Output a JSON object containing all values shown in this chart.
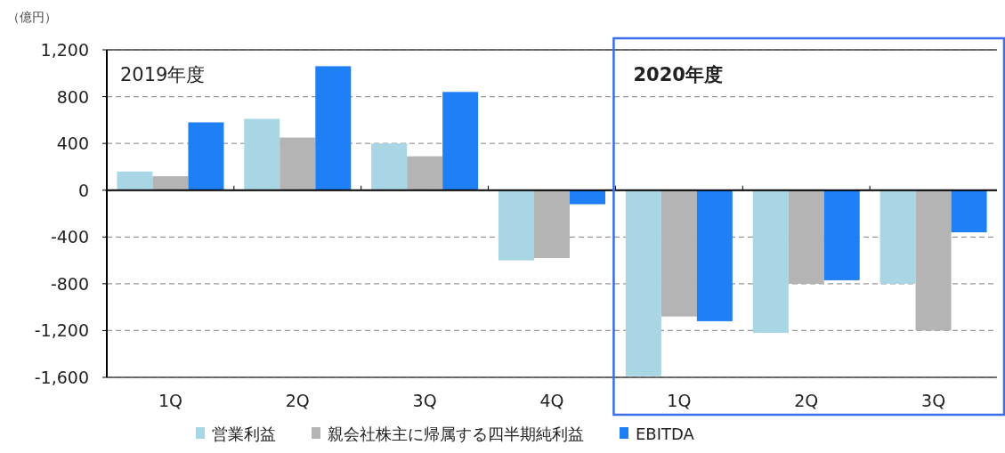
{
  "chart_data": {
    "type": "bar",
    "ylabel": "（億円）",
    "categories": [
      "1Q",
      "2Q",
      "3Q",
      "4Q",
      "1Q",
      "2Q",
      "3Q"
    ],
    "series": [
      {
        "name": "営業利益",
        "color": "#a9d6e5",
        "values": [
          160,
          610,
          400,
          -600,
          -1590,
          -1220,
          -800
        ]
      },
      {
        "name": "親会社株主に帰属する四半期純利益",
        "color": "#b4b4b4",
        "values": [
          120,
          450,
          290,
          -580,
          -1080,
          -800,
          -1200
        ]
      },
      {
        "name": "EBITDA",
        "color": "#1f80f5",
        "values": [
          580,
          1060,
          840,
          -120,
          -1120,
          -770,
          -360
        ]
      }
    ],
    "ylim": [
      -1600,
      1200
    ],
    "yticks": [
      {
        "value": -1600,
        "label": "-1,600"
      },
      {
        "value": -1200,
        "label": "-1,200"
      },
      {
        "value": -800,
        "label": "-800"
      },
      {
        "value": -400,
        "label": "-400"
      },
      0,
      400,
      800,
      {
        "value": 1200,
        "label": "1,200"
      }
    ],
    "grid": "y",
    "legend": "bottom",
    "annotations": [
      "2019年度",
      "2020年度"
    ]
  }
}
